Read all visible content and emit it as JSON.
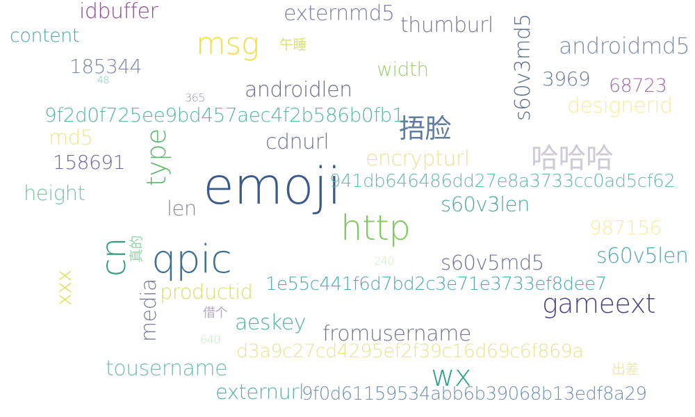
{
  "words": [
    {
      "text": "emoji",
      "color": "#3b5a8c"
    },
    {
      "text": "http",
      "color": "#7cc95c"
    },
    {
      "text": "qpic",
      "color": "#3c6e93"
    },
    {
      "text": "cn",
      "color": "#2f9c7a"
    },
    {
      "text": "msg",
      "color": "#f6dc43"
    },
    {
      "text": "gameext",
      "color": "#47437c"
    },
    {
      "text": "哈哈哈",
      "color": "#cfcbd6"
    },
    {
      "text": "捂脸",
      "color": "#5f7e9e"
    },
    {
      "text": "wx",
      "color": "#2aa386"
    },
    {
      "text": "type",
      "color": "#5cb86a"
    },
    {
      "text": "s60v3md5",
      "color": "#5b6a88"
    },
    {
      "text": "androidmd5",
      "color": "#7e8ca4"
    },
    {
      "text": "externmd5",
      "color": "#7b7fa6"
    },
    {
      "text": "thumburl",
      "color": "#7a7a94"
    },
    {
      "text": "idbuffer",
      "color": "#8a4e90"
    },
    {
      "text": "content",
      "color": "#4fa8a6"
    },
    {
      "text": "185344",
      "color": "#7c86a8"
    },
    {
      "text": "48",
      "color": "#6fc9b1"
    },
    {
      "text": "午睡",
      "color": "#d7e66e"
    },
    {
      "text": "width",
      "color": "#9bd06c"
    },
    {
      "text": "3969",
      "color": "#6c7c96"
    },
    {
      "text": "68723",
      "color": "#9c6fa4"
    },
    {
      "text": "365",
      "color": "#9a8cb8"
    },
    {
      "text": "androidlen",
      "color": "#6b6d8a"
    },
    {
      "text": "designerid",
      "color": "#f8ec9a"
    },
    {
      "text": "9f2d0f725ee9bd457aec4f2b586b0fb1",
      "color": "#54b7a2"
    },
    {
      "text": "md5",
      "color": "#ece58c"
    },
    {
      "text": "cdnurl",
      "color": "#72759a"
    },
    {
      "text": "158691",
      "color": "#6f68a0"
    },
    {
      "text": "encrypturl",
      "color": "#ede196"
    },
    {
      "text": "941db646486dd27e8a3733cc0ad5cf62",
      "color": "#62b9ae"
    },
    {
      "text": "height",
      "color": "#79c39f"
    },
    {
      "text": "len",
      "color": "#8a8a9c"
    },
    {
      "text": "s60v3len",
      "color": "#4aa8a0"
    },
    {
      "text": "987156",
      "color": "#f6ec9c"
    },
    {
      "text": "真的",
      "color": "#9bd3aa"
    },
    {
      "text": "s60v5len",
      "color": "#4fa8b4"
    },
    {
      "text": "240",
      "color": "#d3ebc4"
    },
    {
      "text": "s60v5md5",
      "color": "#6c7196"
    },
    {
      "text": "xxx",
      "color": "#d8df4a"
    },
    {
      "text": "media",
      "color": "#767a96"
    },
    {
      "text": "productid",
      "color": "#d6e06c"
    },
    {
      "text": "1e55c441f6d7bd2c3e71e3733ef8dee7",
      "color": "#4aa8b4"
    },
    {
      "text": "借个",
      "color": "#b4a8c4"
    },
    {
      "text": "aeskey",
      "color": "#52b29a"
    },
    {
      "text": "fromusername",
      "color": "#72748e"
    },
    {
      "text": "640",
      "color": "#c7e6bc"
    },
    {
      "text": "d3a9c27cd4295ef2f39c16d69c6f869a",
      "color": "#e6e48f"
    },
    {
      "text": "tousername",
      "color": "#6fbcaa"
    },
    {
      "text": "出差",
      "color": "#ecebb6"
    },
    {
      "text": "externurl",
      "color": "#55b0a8"
    },
    {
      "text": "9f0d61159534abb6b39068b13edf8a29",
      "color": "#6d8fb4"
    }
  ]
}
